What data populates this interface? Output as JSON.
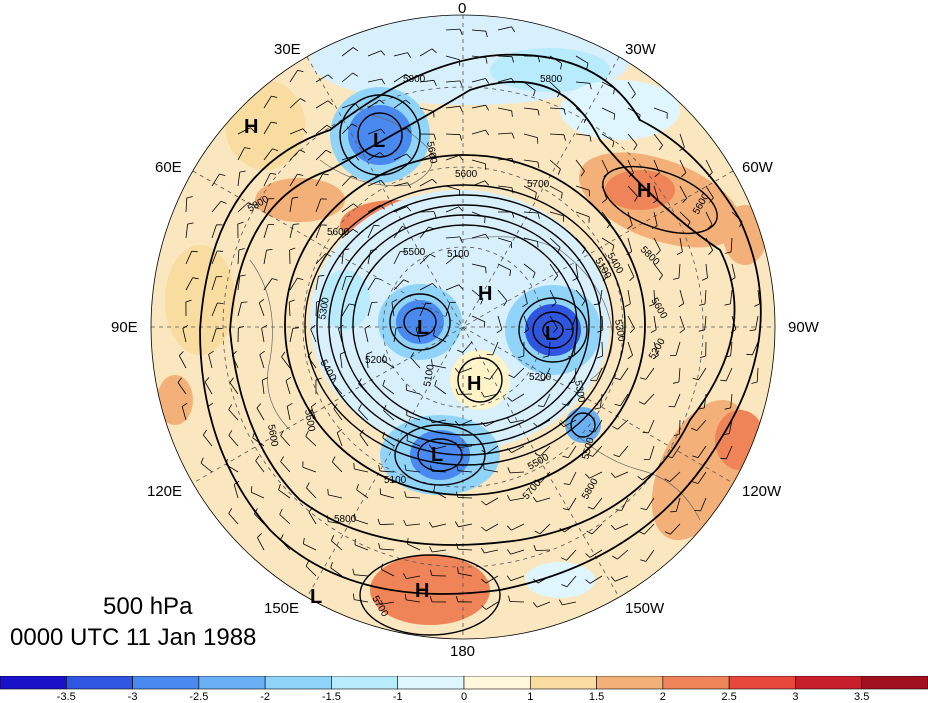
{
  "map": {
    "level_label": "500 hPa",
    "time_label": "0000 UTC 11 Jan 1988",
    "longitude_labels": {
      "n": "0",
      "nne": "30W",
      "ne": "60W",
      "e": "90W",
      "ese": "120W",
      "se": "150W",
      "s": "180",
      "sw": "150E",
      "wsw": "120E",
      "w": "90E",
      "nw": "60E",
      "nnw": "30E"
    },
    "contour_labels": [
      "5800",
      "5800",
      "5700",
      "5600",
      "5600",
      "5600",
      "5100",
      "5500",
      "5200",
      "5300",
      "5400",
      "5500",
      "5600",
      "5100",
      "5100",
      "5200",
      "5300",
      "5500",
      "5700",
      "5800",
      "5800",
      "5500",
      "5300",
      "5200",
      "5100",
      "5400",
      "5600",
      "5800",
      "5600",
      "5700",
      "5800"
    ],
    "pressure_centers": [
      {
        "type": "L"
      },
      {
        "type": "H"
      },
      {
        "type": "H"
      },
      {
        "type": "L"
      },
      {
        "type": "H"
      },
      {
        "type": "L"
      },
      {
        "type": "H"
      },
      {
        "type": "L"
      },
      {
        "type": "H"
      },
      {
        "type": "L"
      }
    ]
  },
  "colorbar": {
    "labels": [
      "-3.5",
      "-3",
      "-2.5",
      "-2",
      "-1.5",
      "-1",
      "0",
      "1",
      "1.5",
      "2",
      "2.5",
      "3",
      "3.5"
    ],
    "colors": [
      "#1a12c8",
      "#2f56e0",
      "#4a8af0",
      "#6ab0f4",
      "#90d4fa",
      "#b8ecfc",
      "#e0f6fe",
      "#fff8dc",
      "#f8dca0",
      "#f3b078",
      "#ef8458",
      "#e8483c",
      "#c8202a",
      "#a0101e"
    ]
  }
}
